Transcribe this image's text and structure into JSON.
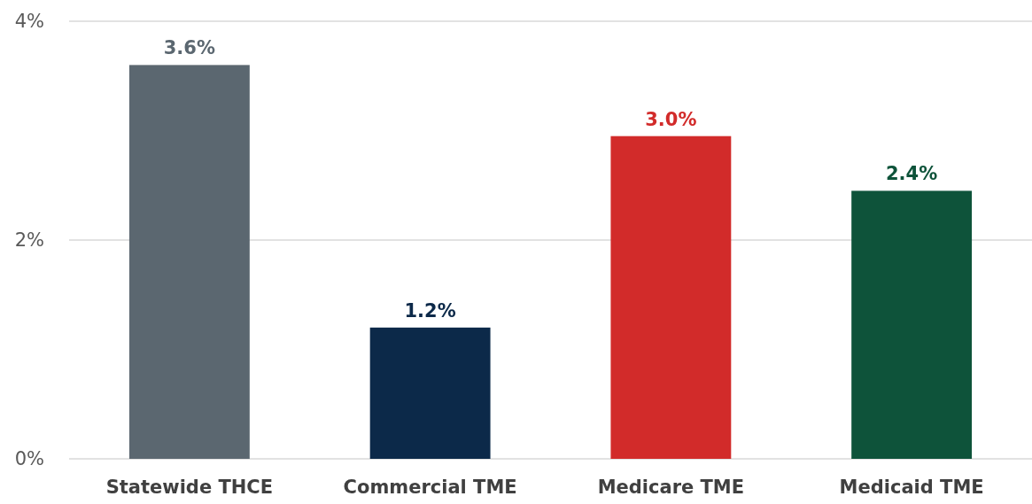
{
  "chart_data": {
    "type": "bar",
    "categories": [
      "Statewide THCE",
      "Commercial TME",
      "Medicare TME",
      "Medicaid TME"
    ],
    "values": [
      3.6,
      1.2,
      2.95,
      2.45
    ],
    "colors": [
      "#5b6770",
      "#0c2949",
      "#d22b2a",
      "#0e533a"
    ],
    "value_labels": [
      "3.6%",
      "1.2%",
      "3.0%",
      "2.4%"
    ],
    "ylim": [
      0,
      4
    ],
    "yticks": [
      {
        "value": 0,
        "label": "0%"
      },
      {
        "value": 2,
        "label": "2%"
      },
      {
        "value": 4,
        "label": "4%"
      }
    ],
    "grid": "y"
  }
}
